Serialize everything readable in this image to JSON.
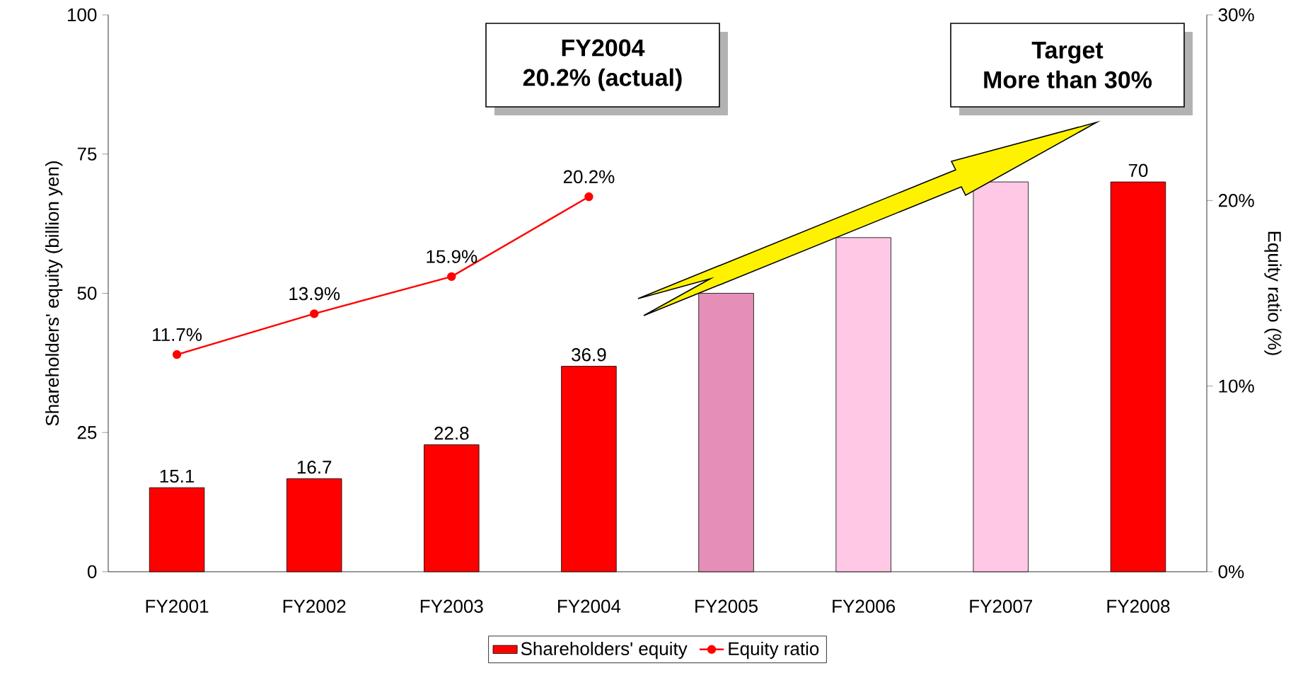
{
  "chart_data": {
    "type": "bar",
    "categories": [
      "FY2001",
      "FY2002",
      "FY2003",
      "FY2004",
      "FY2005",
      "FY2006",
      "FY2007",
      "FY2008"
    ],
    "series": [
      {
        "name": "Shareholders' equity",
        "color": "#ff0000",
        "colors": [
          "#ff0000",
          "#ff0000",
          "#ff0000",
          "#ff0000",
          "#e58fb8",
          "#ffc8e4",
          "#ffc8e4",
          "#ff0000"
        ],
        "values": [
          15.1,
          16.7,
          22.8,
          36.9,
          50,
          60,
          70,
          70
        ],
        "value_labels": [
          "15.1",
          "16.7",
          "22.8",
          "36.9",
          null,
          null,
          null,
          "70"
        ]
      },
      {
        "name": "Equity ratio",
        "type": "line",
        "axis": "y2",
        "color": "#ff0000",
        "marker": "circle",
        "values": [
          11.7,
          13.9,
          15.9,
          20.2,
          null,
          null,
          null,
          null
        ],
        "value_labels": [
          "11.7%",
          "13.9%",
          "15.9%",
          "20.2%",
          null,
          null,
          null,
          null
        ]
      }
    ],
    "ylabel": "Shareholders' equity (billion yen)",
    "y2label": "Equity ratio (%)",
    "ylim": [
      0,
      100
    ],
    "yticks": [
      0,
      25,
      50,
      75,
      100
    ],
    "y2lim": [
      0,
      30
    ],
    "y2ticks": [
      {
        "value": 0,
        "label": "0%"
      },
      {
        "value": 10,
        "label": "10%"
      },
      {
        "value": 20,
        "label": "20%"
      },
      {
        "value": 30,
        "label": "30%"
      }
    ],
    "annotations": [
      "FY2004",
      "20.2% (actual)",
      "Target",
      "More than 30%"
    ],
    "legend": "bottom",
    "grid": false
  }
}
